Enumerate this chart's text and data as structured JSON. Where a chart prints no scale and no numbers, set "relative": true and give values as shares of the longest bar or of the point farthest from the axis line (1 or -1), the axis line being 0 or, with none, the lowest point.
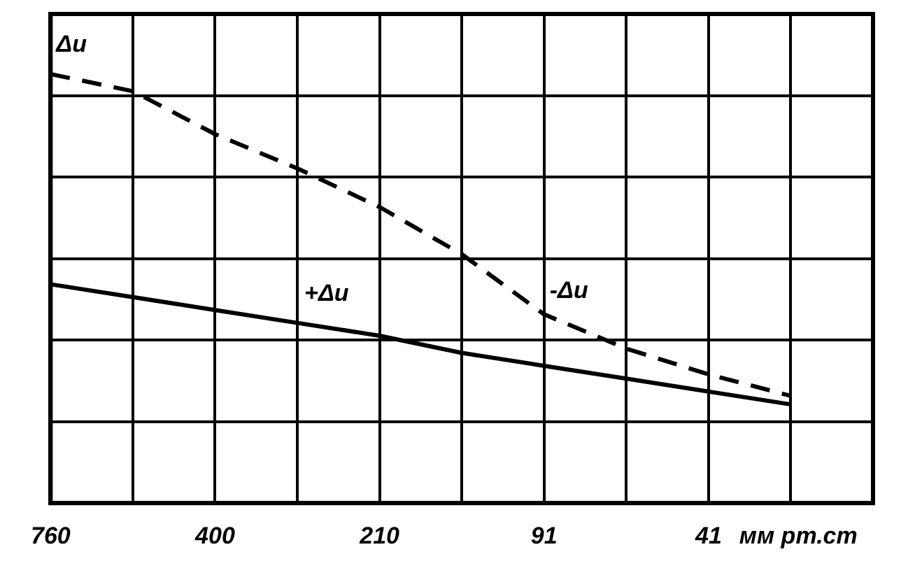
{
  "chart_data": {
    "type": "line",
    "relative": true,
    "ylabel": "Δu",
    "xlabel": "мм рт.ст",
    "categories": [
      "760",
      null,
      "400",
      null,
      "210",
      null,
      "91",
      null,
      "41",
      null,
      null
    ],
    "grid": true,
    "legend": false,
    "marker": "none",
    "series": [
      {
        "name": "-Δu",
        "color": "#000000",
        "line_style": "dashed",
        "values": [
          1,
          0.96,
          0.86,
          0.78,
          0.69,
          0.58,
          0.44,
          0.36,
          0.3,
          0.25,
          null
        ]
      },
      {
        "name": "+Δu",
        "color": "#000000",
        "line_style": "solid",
        "values": [
          0.51,
          0.48,
          0.45,
          0.42,
          0.39,
          0.35,
          0.32,
          0.29,
          0.26,
          0.23,
          null
        ]
      }
    ]
  }
}
